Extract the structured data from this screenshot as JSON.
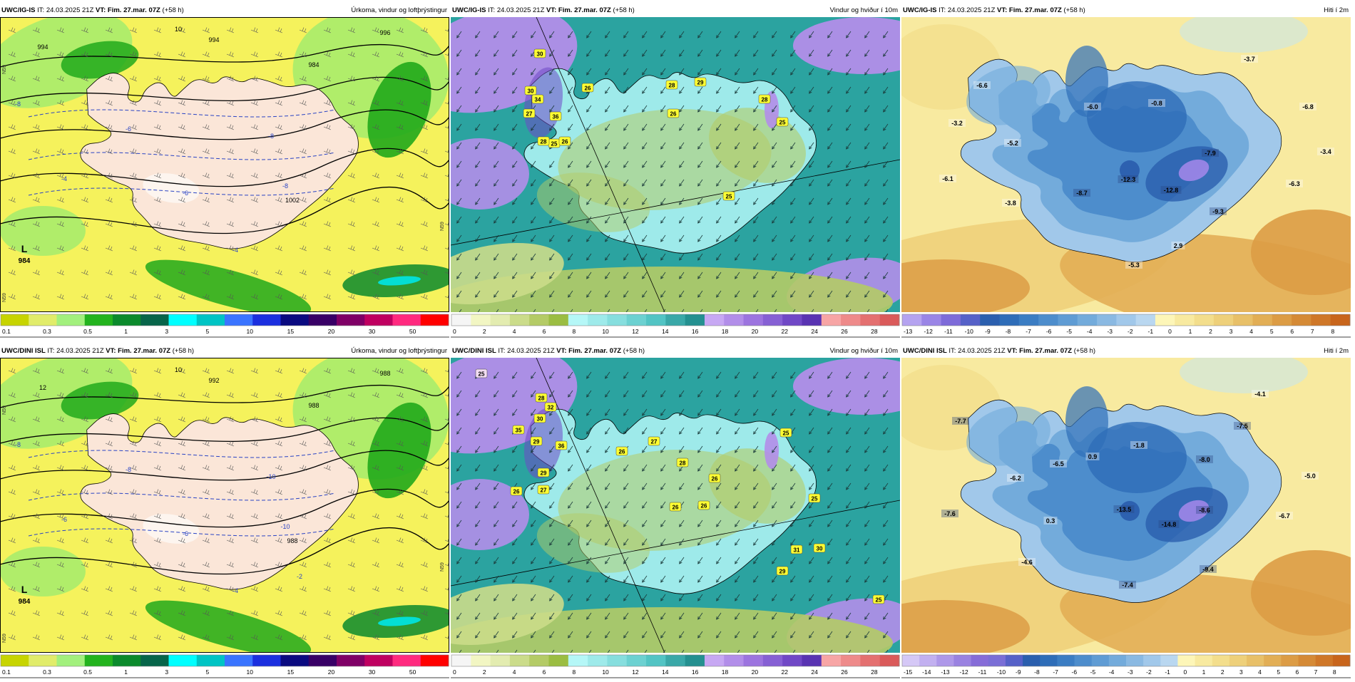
{
  "top_row": {
    "precip": {
      "model": "UWC/IG-IS",
      "it_label": "IT:",
      "it_value": "24.03.2025 21Z",
      "vt_label": "VT:",
      "vt_value": "Fim. 27.mar. 07Z",
      "lead": "(+58 h)",
      "title": "Úrkoma, vindur og loftþrýstingur",
      "isobars": [
        "994",
        "994",
        "996",
        "10",
        "1002",
        "984"
      ],
      "temps": [
        "-8",
        "-6",
        "-8",
        "-8",
        "-4",
        "-6",
        "-4"
      ],
      "low_letter": "L",
      "low_value": "984",
      "edge_labels": [
        "N59",
        "N59",
        "N59"
      ]
    },
    "wind": {
      "model": "UWC/IG-IS",
      "it_label": "IT:",
      "it_value": "24.03.2025 21Z",
      "vt_label": "VT:",
      "vt_value": "Fim. 27.mar. 07Z",
      "lead": "(+58 h)",
      "title": "Vindur og hviður í 10m",
      "gusts": [
        "30",
        "26",
        "30",
        "34",
        "27",
        "36",
        "25",
        "28",
        "26",
        "28",
        "29",
        "26",
        "28",
        "25",
        "25"
      ]
    },
    "temp": {
      "model": "UWC/IG-IS",
      "it_label": "IT:",
      "it_value": "24.03.2025 21Z",
      "vt_label": "VT:",
      "vt_value": "Fim. 27.mar. 07Z",
      "lead": "(+58 h)",
      "title": "Hiti í 2m",
      "temps": [
        "-6.6",
        "-3.2",
        "-5.2",
        "-6.0",
        "-0.8",
        "-3.7",
        "-6.8",
        "-3.4",
        "-7.9",
        "-6.1",
        "-8.7",
        "-12.3",
        "-12.8",
        "-6.3",
        "-9.3",
        "-3.8",
        "2.9",
        "-5.3"
      ]
    }
  },
  "bottom_row": {
    "precip": {
      "model": "UWC/DINI ISL",
      "it_label": "IT:",
      "it_value": "24.03.2025 21Z",
      "vt_label": "VT:",
      "vt_value": "Fim. 27.mar. 07Z",
      "lead": "(+58 h)",
      "title": "Úrkoma, vindur og loftþrýstingur",
      "isobars": [
        "12",
        "992",
        "988",
        "10",
        "988",
        "988"
      ],
      "temps": [
        "-8",
        "-8",
        "-10",
        "-10",
        "-6",
        "-6",
        "-4",
        "-2"
      ],
      "low_letter": "L",
      "low_value": "984",
      "edge_labels": [
        "N59",
        "N59",
        "N59"
      ]
    },
    "wind": {
      "model": "UWC/DINI ISL",
      "it_label": "IT:",
      "it_value": "24.03.2025 21Z",
      "vt_label": "VT:",
      "vt_value": "Fim. 27.mar. 07Z",
      "lead": "(+58 h)",
      "title": "Vindur og hviður í 10m",
      "gusts": [
        "25",
        "28",
        "32",
        "30",
        "35",
        "29",
        "36",
        "29",
        "26",
        "27",
        "26",
        "27",
        "28",
        "26",
        "25",
        "26",
        "26",
        "25",
        "31",
        "30",
        "29",
        "25"
      ]
    },
    "temp": {
      "model": "UWC/DINI ISL",
      "it_label": "IT:",
      "it_value": "24.03.2025 21Z",
      "vt_label": "VT:",
      "vt_value": "Fim. 27.mar. 07Z",
      "lead": "(+58 h)",
      "title": "Hiti í 2m",
      "temps": [
        "-7.7",
        "-6.2",
        "-6.5",
        "0.9",
        "-1.8",
        "-4.1",
        "-7.5",
        "-8.0",
        "-5.0",
        "-7.6",
        "0.3",
        "-13.5",
        "-14.8",
        "-8.6",
        "-6.7",
        "-4.6",
        "-9.4",
        "-7.4"
      ]
    }
  },
  "colorbars": {
    "precip": {
      "colors": [
        "#c7d400",
        "#e1ec6a",
        "#a2f07d",
        "#23b31e",
        "#0b8a2c",
        "#07654a",
        "#00ffff",
        "#00c4c4",
        "#3a74ff",
        "#1b2fdf",
        "#0a0a80",
        "#380066",
        "#7f0066",
        "#bf0060",
        "#ff2a7f",
        "#ff0000"
      ],
      "labels": [
        "0.1",
        "0.3",
        "0.5",
        "1",
        "3",
        "5",
        "10",
        "15",
        "20",
        "30",
        "50"
      ]
    },
    "wind": {
      "colors": [
        "#f5f5f5",
        "#f2f6c3",
        "#e3ecb0",
        "#cbdc8a",
        "#b4cb66",
        "#9bbd42",
        "#b5f7f7",
        "#9eeaea",
        "#86dede",
        "#6cd1d1",
        "#52c4c4",
        "#3aa8a8",
        "#249090",
        "#c7a8f3",
        "#b28ee9",
        "#9c74df",
        "#8660d4",
        "#7048c6",
        "#5933b2",
        "#f7a5a5",
        "#ee8a8a",
        "#e47070",
        "#da5a5a"
      ],
      "labels": [
        "0",
        "2",
        "4",
        "6",
        "8",
        "10",
        "12",
        "14",
        "16",
        "18",
        "20",
        "22",
        "24",
        "26",
        "28"
      ]
    },
    "temp_top": {
      "colors": [
        "#b5a3f0",
        "#9a85e6",
        "#7e6bd9",
        "#5661c8",
        "#2b5fae",
        "#2e6db8",
        "#3b7dc3",
        "#4d8dcc",
        "#5f9cd4",
        "#73abdb",
        "#8ab9e2",
        "#a1c8ea",
        "#b9d7f0",
        "#fdf6b8",
        "#f8eaa0",
        "#f3de8c",
        "#eed07a",
        "#e8c068",
        "#e2ae55",
        "#dc9c45",
        "#d58a36",
        "#cf7728",
        "#c8651c"
      ],
      "labels": [
        "-13",
        "-12",
        "-11",
        "-10",
        "-9",
        "-8",
        "-7",
        "-6",
        "-5",
        "-4",
        "-3",
        "-2",
        "-1",
        "0",
        "1",
        "2",
        "3",
        "4",
        "5",
        "6",
        "7",
        "8"
      ]
    },
    "temp_bottom": {
      "colors": [
        "#d5c8f6",
        "#c2b0f0",
        "#ae98e9",
        "#9a82e1",
        "#866cd8",
        "#7a6ed6",
        "#5661c8",
        "#2b5fae",
        "#2e6db8",
        "#3b7dc3",
        "#4d8dcc",
        "#5f9cd4",
        "#73abdb",
        "#8ab9e2",
        "#a1c8ea",
        "#b9d7f0",
        "#fdf6b8",
        "#f8eaa0",
        "#f3de8c",
        "#eed07a",
        "#e8c068",
        "#e2ae55",
        "#dc9c45",
        "#d58a36",
        "#cf7728",
        "#c8651c"
      ],
      "labels": [
        "-15",
        "-14",
        "-13",
        "-12",
        "-11",
        "-10",
        "-9",
        "-8",
        "-7",
        "-6",
        "-5",
        "-4",
        "-3",
        "-2",
        "-1",
        "0",
        "1",
        "2",
        "3",
        "4",
        "5",
        "6",
        "7",
        "8"
      ]
    }
  }
}
